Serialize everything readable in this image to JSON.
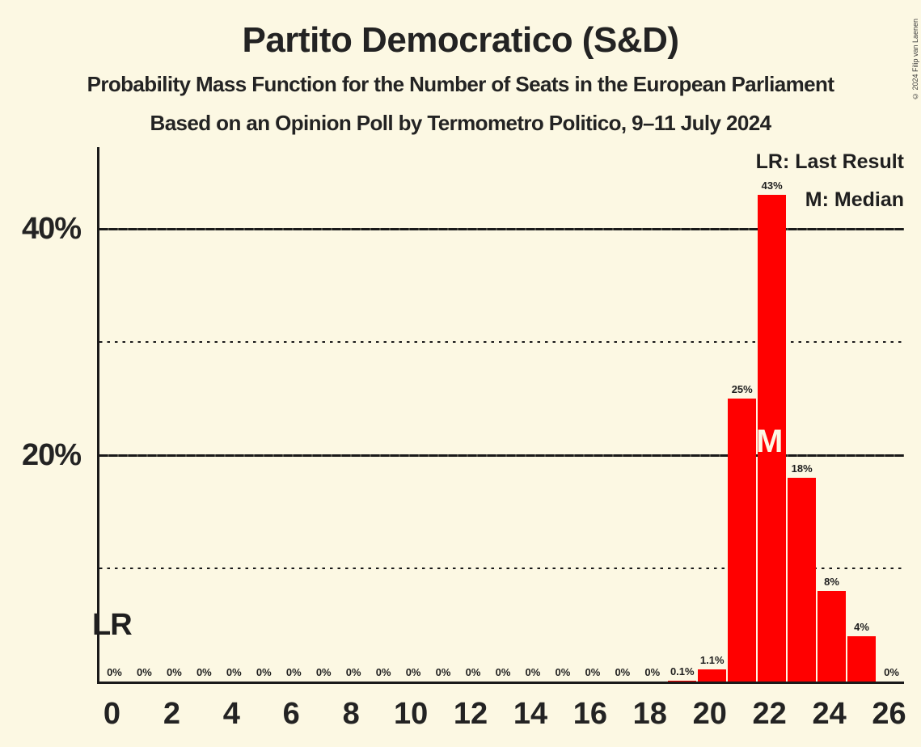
{
  "header": {
    "title": "Partito Democratico (S&D)",
    "subtitle1": "Probability Mass Function for the Number of Seats in the European Parliament",
    "subtitle2": "Based on an Opinion Poll by Termometro Politico, 9–11 July 2024"
  },
  "copyright": "© 2024 Filip van Laenen",
  "legend": {
    "last_result": "LR: Last Result",
    "median": "M: Median"
  },
  "colors": {
    "background": "#FCF8E3",
    "bar": "#FF0000",
    "text": "#1F1F1F",
    "axis": "#1A1A1A"
  },
  "chart_data": {
    "type": "bar",
    "title": "Partito Democratico (S&D)",
    "seats": [
      0,
      1,
      2,
      3,
      4,
      5,
      6,
      7,
      8,
      9,
      10,
      11,
      12,
      13,
      14,
      15,
      16,
      17,
      18,
      19,
      20,
      21,
      22,
      23,
      24,
      25,
      26
    ],
    "probabilities_percent": [
      0,
      0,
      0,
      0,
      0,
      0,
      0,
      0,
      0,
      0,
      0,
      0,
      0,
      0,
      0,
      0,
      0,
      0,
      0,
      0.1,
      1.1,
      25,
      43,
      18,
      8,
      4,
      0
    ],
    "bar_labels": [
      "0%",
      "0%",
      "0%",
      "0%",
      "0%",
      "0%",
      "0%",
      "0%",
      "0%",
      "0%",
      "0%",
      "0%",
      "0%",
      "0%",
      "0%",
      "0%",
      "0%",
      "0%",
      "0%",
      "0.1%",
      "1.1%",
      "25%",
      "43%",
      "18%",
      "8%",
      "4%",
      "0%"
    ],
    "x_tick_seats": [
      0,
      2,
      4,
      6,
      8,
      10,
      12,
      14,
      16,
      18,
      20,
      22,
      24,
      26
    ],
    "y_axis": {
      "tick_labels": [
        "20%",
        "40%"
      ],
      "solid_gridlines_percent": [
        20,
        40
      ],
      "dotted_gridlines_percent": [
        10,
        30
      ],
      "ylim_percent": [
        0,
        47.3
      ],
      "legend_position": "top-right"
    },
    "annotations": {
      "lr_label": "LR",
      "median_label": "M",
      "median_seat": 22
    },
    "legend_entries": [
      "LR: Last Result",
      "M: Median"
    ]
  }
}
